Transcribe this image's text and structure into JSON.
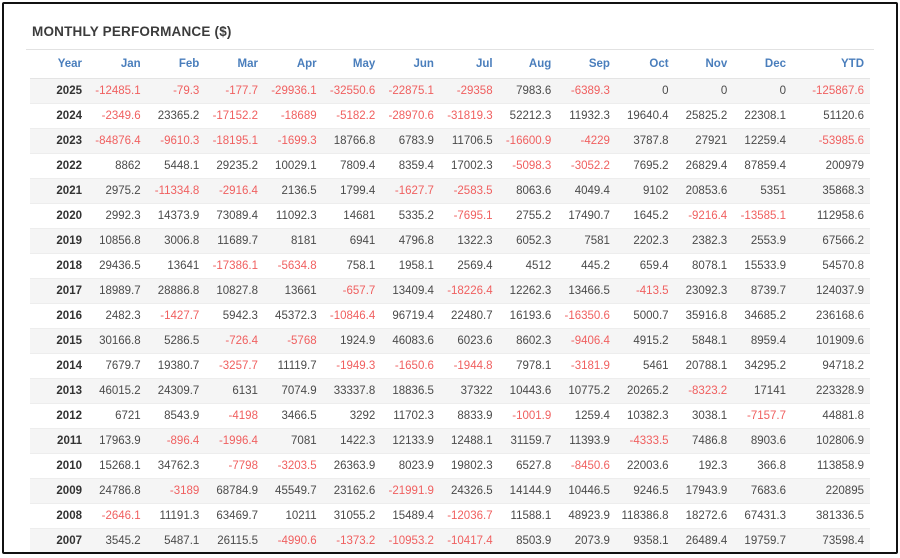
{
  "title": "MONTHLY PERFORMANCE ($)",
  "colors": {
    "header_text": "#4a7ebc",
    "negative_value": "#f05f5f",
    "positive_value": "#4a4a4a",
    "row_stripe": "#f5f5f5",
    "outer_border": "#111111"
  },
  "chart_data": {
    "type": "table",
    "title": "MONTHLY PERFORMANCE ($)",
    "columns": [
      "Year",
      "Jan",
      "Feb",
      "Mar",
      "Apr",
      "May",
      "Jun",
      "Jul",
      "Aug",
      "Sep",
      "Oct",
      "Nov",
      "Dec",
      "YTD"
    ],
    "rows": [
      {
        "year": "2025",
        "values": [
          -12485.1,
          -79.3,
          -177.7,
          -29936.1,
          -32550.6,
          -22875.1,
          -29358,
          7983.6,
          -6389.3,
          0,
          0,
          0,
          -125867.6
        ]
      },
      {
        "year": "2024",
        "values": [
          -2349.6,
          23365.2,
          -17152.2,
          -18689,
          -5182.2,
          -28970.6,
          -31819.3,
          52212.3,
          11932.3,
          19640.4,
          25825.2,
          22308.1,
          51120.6
        ]
      },
      {
        "year": "2023",
        "values": [
          -84876.4,
          -9610.3,
          -18195.1,
          -1699.3,
          18766.8,
          6783.9,
          11706.5,
          -16600.9,
          -4229,
          3787.8,
          27921,
          12259.4,
          -53985.6
        ]
      },
      {
        "year": "2022",
        "values": [
          8862,
          5448.1,
          29235.2,
          10029.1,
          7809.4,
          8359.4,
          17002.3,
          -5098.3,
          -3052.2,
          7695.2,
          26829.4,
          87859.4,
          200979
        ]
      },
      {
        "year": "2021",
        "values": [
          2975.2,
          -11334.8,
          -2916.4,
          2136.5,
          1799.4,
          -1627.7,
          -2583.5,
          8063.6,
          4049.4,
          9102,
          20853.6,
          5351,
          35868.3
        ]
      },
      {
        "year": "2020",
        "values": [
          2992.3,
          14373.9,
          73089.4,
          11092.3,
          14681,
          5335.2,
          -7695.1,
          2755.2,
          17490.7,
          1645.2,
          -9216.4,
          -13585.1,
          112958.6
        ]
      },
      {
        "year": "2019",
        "values": [
          10856.8,
          3006.8,
          11689.7,
          8181,
          6941,
          4796.8,
          1322.3,
          6052.3,
          7581,
          2202.3,
          2382.3,
          2553.9,
          67566.2
        ]
      },
      {
        "year": "2018",
        "values": [
          29436.5,
          13641,
          -17386.1,
          -5634.8,
          758.1,
          1958.1,
          2569.4,
          4512,
          445.2,
          659.4,
          8078.1,
          15533.9,
          54570.8
        ]
      },
      {
        "year": "2017",
        "values": [
          18989.7,
          28886.8,
          10827.8,
          13661,
          -657.7,
          13409.4,
          -18226.4,
          12262.3,
          13466.5,
          -413.5,
          23092.3,
          8739.7,
          124037.9
        ]
      },
      {
        "year": "2016",
        "values": [
          2482.3,
          -1427.7,
          5942.3,
          45372.3,
          -10846.4,
          96719.4,
          22480.7,
          16193.6,
          -16350.6,
          5000.7,
          35916.8,
          34685.2,
          236168.6
        ]
      },
      {
        "year": "2015",
        "values": [
          30166.8,
          5286.5,
          -726.4,
          -5768,
          1924.9,
          46083.6,
          6023.6,
          8602.3,
          -9406.4,
          4915.2,
          5848.1,
          8959.4,
          101909.6
        ]
      },
      {
        "year": "2014",
        "values": [
          7679.7,
          19380.7,
          -3257.7,
          11119.7,
          -1949.3,
          -1650.6,
          -1944.8,
          7978.1,
          -3181.9,
          5461,
          20788.1,
          34295.2,
          94718.2
        ]
      },
      {
        "year": "2013",
        "values": [
          46015.2,
          24309.7,
          6131,
          7074.9,
          33337.8,
          18836.5,
          37322,
          10443.6,
          10775.2,
          20265.2,
          -8323.2,
          17141,
          223328.9
        ]
      },
      {
        "year": "2012",
        "values": [
          6721,
          8543.9,
          -4198,
          3466.5,
          3292,
          11702.3,
          8833.9,
          -1001.9,
          1259.4,
          10382.3,
          3038.1,
          -7157.7,
          44881.8
        ]
      },
      {
        "year": "2011",
        "values": [
          17963.9,
          -896.4,
          -1996.4,
          7081,
          1422.3,
          12133.9,
          12488.1,
          31159.7,
          11393.9,
          -4333.5,
          7486.8,
          8903.6,
          102806.9
        ]
      },
      {
        "year": "2010",
        "values": [
          15268.1,
          34762.3,
          -7798,
          -3203.5,
          26363.9,
          8023.9,
          19802.3,
          6527.8,
          -8450.6,
          22003.6,
          192.3,
          366.8,
          113858.9
        ]
      },
      {
        "year": "2009",
        "values": [
          24786.8,
          -3189,
          68784.9,
          45549.7,
          23162.6,
          -21991.9,
          24326.5,
          14144.9,
          10446.5,
          9246.5,
          17943.9,
          7683.6,
          220895
        ]
      },
      {
        "year": "2008",
        "values": [
          -2646.1,
          11191.3,
          63469.7,
          10211,
          31055.2,
          15489.4,
          -12036.7,
          11588.1,
          48923.9,
          118386.8,
          18272.6,
          67431.3,
          381336.5
        ]
      },
      {
        "year": "2007",
        "values": [
          3545.2,
          5487.1,
          26115.5,
          -4990.6,
          -1373.2,
          -10953.2,
          -10417.4,
          8503.9,
          2073.9,
          9358.1,
          26489.4,
          19759.7,
          73598.4
        ]
      }
    ]
  }
}
